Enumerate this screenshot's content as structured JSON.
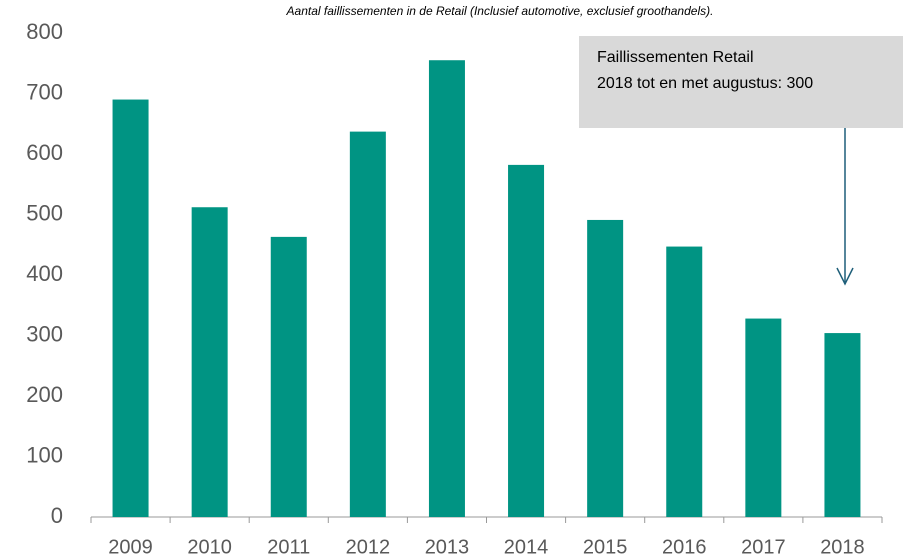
{
  "chart_data": {
    "type": "bar",
    "title": "Aantal faillissementen in de Retail (Inclusief automotive, exclusief groothandels).",
    "categories": [
      "2009",
      "2010",
      "2011",
      "2012",
      "2013",
      "2014",
      "2015",
      "2016",
      "2017",
      "2018"
    ],
    "values": [
      690,
      512,
      463,
      637,
      755,
      582,
      491,
      447,
      328,
      304
    ],
    "color": "#009483",
    "ylim": [
      0,
      800
    ],
    "yticks": [
      0,
      100,
      200,
      300,
      400,
      500,
      600,
      700,
      800
    ],
    "grid": false,
    "annotation": [
      "Faillissementen Retail",
      "2018 tot en met augustus: 300"
    ]
  }
}
